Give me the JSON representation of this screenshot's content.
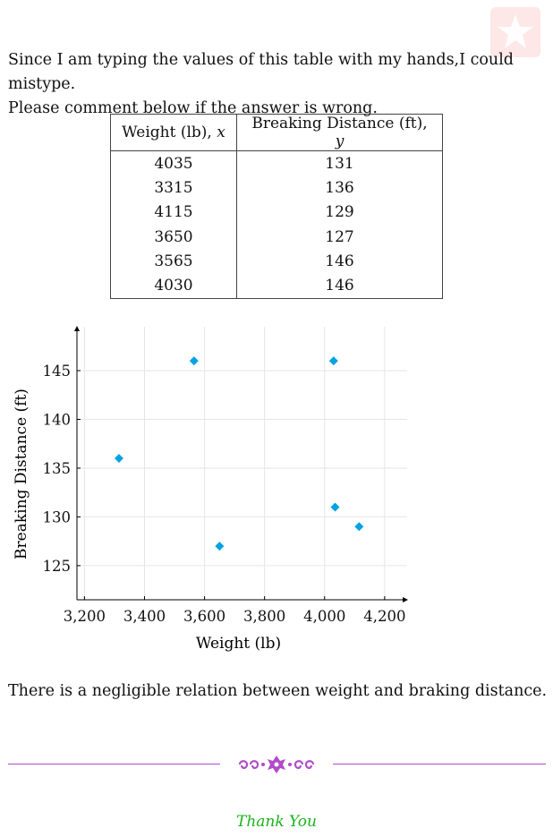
{
  "intro": {
    "line1": "Since I am typing the values of this table with my hands,I could mistype.",
    "line2": "Please comment below if the answer is wrong."
  },
  "table": {
    "headers": [
      "Weight (lb), x",
      "Breaking Distance (ft), y"
    ],
    "rows": [
      [
        "4035",
        "131"
      ],
      [
        "3315",
        "136"
      ],
      [
        "4115",
        "129"
      ],
      [
        "3650",
        "127"
      ],
      [
        "3565",
        "146"
      ],
      [
        "4030",
        "146"
      ]
    ]
  },
  "chart_data": {
    "type": "scatter",
    "title": "",
    "xlabel": "Weight (lb)",
    "ylabel": "Breaking Distance (ft)",
    "xlim": [
      3175,
      4275
    ],
    "ylim": [
      121.5,
      149.5
    ],
    "xticks": [
      3200,
      3400,
      3600,
      3800,
      4000,
      4200
    ],
    "xtick_labels": [
      "3,200",
      "3,400",
      "3,600",
      "3,800",
      "4,000",
      "4,200"
    ],
    "yticks": [
      125,
      130,
      135,
      140,
      145
    ],
    "ytick_labels": [
      "125",
      "130",
      "135",
      "140",
      "145"
    ],
    "grid": true,
    "marker": "diamond",
    "marker_color": "#00a2e3",
    "x": [
      4035,
      3315,
      4115,
      3650,
      3565,
      4030
    ],
    "y": [
      131,
      136,
      129,
      127,
      146,
      146
    ]
  },
  "conclusion": "There is a negligible relation between weight and braking distance.",
  "footer": {
    "thanks": "Thank You",
    "line_color": "#b14cc8",
    "thanks_color": "#18b418"
  }
}
